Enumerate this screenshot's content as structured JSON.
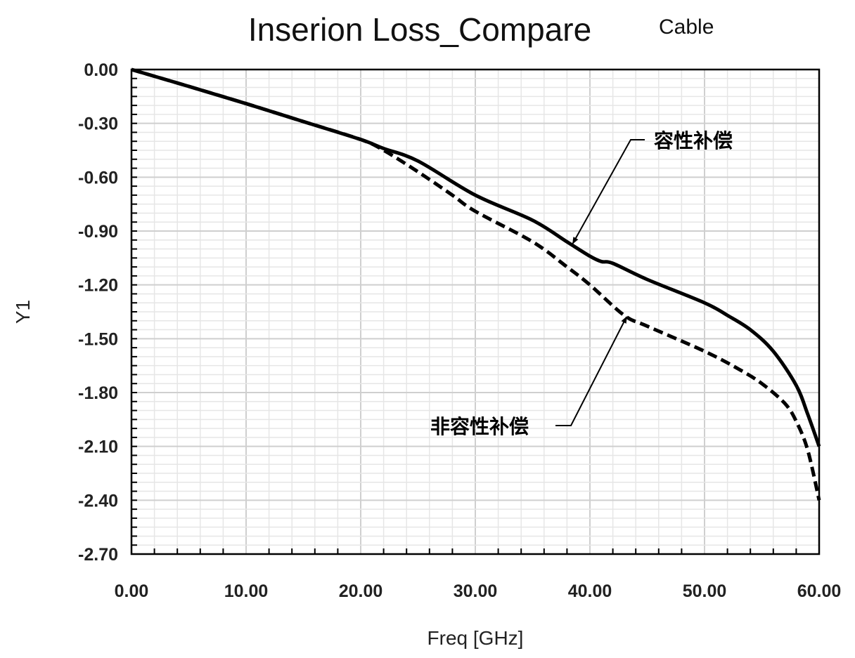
{
  "chart_data": {
    "type": "line",
    "title": "Inserion Loss_Compare",
    "subtitle": "Cable",
    "xlabel": "Freq [GHz]",
    "ylabel": "Y1",
    "xlim": [
      0,
      60
    ],
    "ylim": [
      -2.7,
      0
    ],
    "xticks": [
      "0.00",
      "10.00",
      "20.00",
      "30.00",
      "40.00",
      "50.00",
      "60.00"
    ],
    "yticks": [
      "0.00",
      "-0.30",
      "-0.60",
      "-0.90",
      "-1.20",
      "-1.50",
      "-1.80",
      "-2.10",
      "-2.40",
      "-2.70"
    ],
    "grid": true,
    "series": [
      {
        "name": "容性补偿",
        "style": "solid",
        "x": [
          0,
          5,
          10,
          15,
          20,
          22,
          25,
          30,
          35,
          38,
          40,
          41,
          42,
          45,
          50,
          52,
          54,
          56,
          58,
          59,
          60
        ],
        "y": [
          0,
          -0.094,
          -0.19,
          -0.29,
          -0.39,
          -0.44,
          -0.51,
          -0.7,
          -0.84,
          -0.96,
          -1.04,
          -1.07,
          -1.08,
          -1.17,
          -1.3,
          -1.37,
          -1.45,
          -1.57,
          -1.76,
          -1.92,
          -2.1
        ]
      },
      {
        "name": "非容性补偿",
        "style": "dashed",
        "x": [
          0,
          5,
          10,
          15,
          20,
          22,
          25,
          28,
          30,
          35,
          38,
          40,
          43,
          45,
          50,
          53,
          55,
          57,
          58,
          59,
          60
        ],
        "y": [
          0,
          -0.094,
          -0.19,
          -0.29,
          -0.39,
          -0.45,
          -0.57,
          -0.7,
          -0.79,
          -0.96,
          -1.1,
          -1.2,
          -1.37,
          -1.43,
          -1.57,
          -1.67,
          -1.75,
          -1.86,
          -1.96,
          -2.12,
          -2.4
        ]
      }
    ],
    "annotations": [
      {
        "text": "容性补偿",
        "series": 0,
        "point_x": 38.5,
        "point_y": -0.97
      },
      {
        "text": "非容性补偿",
        "series": 1,
        "point_x": 43.2,
        "point_y": -1.37
      }
    ]
  }
}
